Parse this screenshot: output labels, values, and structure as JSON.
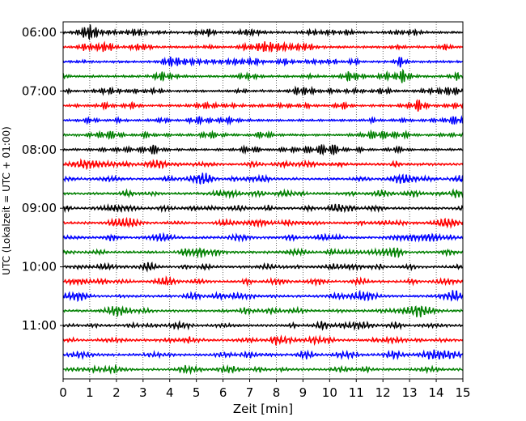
{
  "chart_data": {
    "type": "line",
    "xlabel": "Zeit  [min]",
    "ylabel": "UTC (Lokalzeit = UTC + 01:00)",
    "xlim": [
      0,
      15
    ],
    "x_ticks": [
      0,
      1,
      2,
      3,
      4,
      5,
      6,
      7,
      8,
      9,
      10,
      11,
      12,
      13,
      14,
      15
    ],
    "y_tick_labels": [
      "06:00",
      "07:00",
      "08:00",
      "09:00",
      "10:00",
      "11:00"
    ],
    "grid": "vertical dotted at each minute",
    "trace_interval_minutes": 15,
    "trace_colors": [
      "#000000",
      "#ff0000",
      "#0000ff",
      "#008000"
    ],
    "traces": [
      {
        "start": "06:00",
        "color": "#000000"
      },
      {
        "start": "06:15",
        "color": "#ff0000"
      },
      {
        "start": "06:30",
        "color": "#0000ff"
      },
      {
        "start": "06:45",
        "color": "#008000"
      },
      {
        "start": "07:00",
        "color": "#000000"
      },
      {
        "start": "07:15",
        "color": "#ff0000"
      },
      {
        "start": "07:30",
        "color": "#0000ff"
      },
      {
        "start": "07:45",
        "color": "#008000"
      },
      {
        "start": "08:00",
        "color": "#000000"
      },
      {
        "start": "08:15",
        "color": "#ff0000"
      },
      {
        "start": "08:30",
        "color": "#0000ff"
      },
      {
        "start": "08:45",
        "color": "#008000"
      },
      {
        "start": "09:00",
        "color": "#000000"
      },
      {
        "start": "09:15",
        "color": "#ff0000"
      },
      {
        "start": "09:30",
        "color": "#0000ff"
      },
      {
        "start": "09:45",
        "color": "#008000"
      },
      {
        "start": "10:00",
        "color": "#000000"
      },
      {
        "start": "10:15",
        "color": "#ff0000"
      },
      {
        "start": "10:30",
        "color": "#0000ff"
      },
      {
        "start": "10:45",
        "color": "#008000"
      },
      {
        "start": "11:00",
        "color": "#000000"
      },
      {
        "start": "11:15",
        "color": "#ff0000"
      },
      {
        "start": "11:30",
        "color": "#0000ff"
      },
      {
        "start": "11:45",
        "color": "#008000"
      }
    ]
  }
}
